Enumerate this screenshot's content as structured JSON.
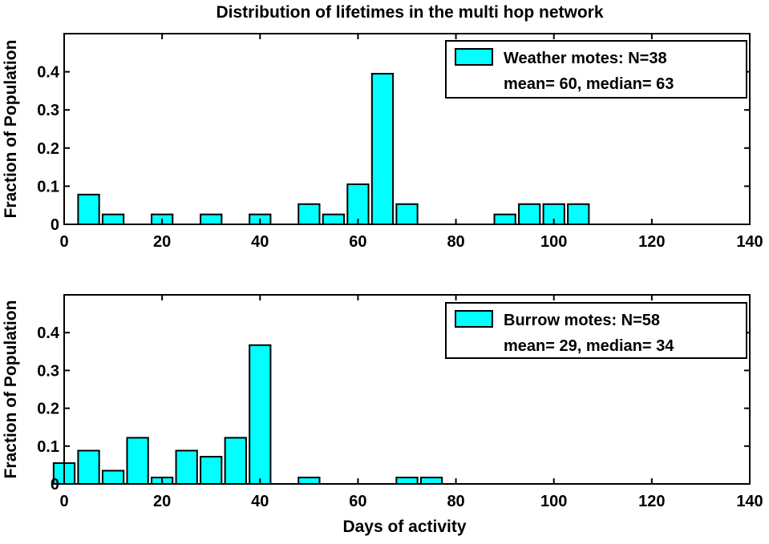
{
  "title": "Distribution of lifetimes in the multi hop network",
  "chart_data": [
    {
      "type": "bar",
      "ylabel": "Fraction of Population",
      "xlabel": "",
      "xlim": [
        0,
        140
      ],
      "ylim": [
        0,
        0.5
      ],
      "xticks": [
        0,
        20,
        40,
        60,
        80,
        100,
        120,
        140
      ],
      "yticks": [
        0,
        0.1,
        0.2,
        0.3,
        0.4
      ],
      "ytick_labels": [
        "0",
        "0.1",
        "0.2",
        "0.3",
        "0.4"
      ],
      "bin_width": 5,
      "bar_color": "#00ffff",
      "grid": false,
      "legend_position": "top-right",
      "x": [
        5,
        10,
        20,
        30,
        40,
        50,
        55,
        60,
        65,
        70,
        90,
        95,
        100,
        105
      ],
      "values": [
        0.078,
        0.026,
        0.026,
        0.026,
        0.026,
        0.053,
        0.026,
        0.105,
        0.395,
        0.053,
        0.026,
        0.053,
        0.053,
        0.053
      ],
      "legend": {
        "label": "Weather motes: N=38",
        "subtext": "mean= 60, median= 63"
      }
    },
    {
      "type": "bar",
      "ylabel": "Fraction of Population",
      "xlabel": "Days of activity",
      "xlim": [
        0,
        140
      ],
      "ylim": [
        0,
        0.5
      ],
      "xticks": [
        0,
        20,
        40,
        60,
        80,
        100,
        120,
        140
      ],
      "yticks": [
        0,
        0.1,
        0.2,
        0.3,
        0.4
      ],
      "ytick_labels": [
        "0",
        "0.1",
        "0.2",
        "0.3",
        "0.4"
      ],
      "bin_width": 5,
      "bar_color": "#00ffff",
      "grid": false,
      "legend_position": "top-right",
      "x": [
        0,
        5,
        10,
        15,
        20,
        25,
        30,
        35,
        40,
        50,
        70,
        75
      ],
      "values": [
        0.055,
        0.088,
        0.035,
        0.122,
        0.017,
        0.088,
        0.072,
        0.122,
        0.367,
        0.017,
        0.017,
        0.017
      ],
      "legend": {
        "label": "Burrow motes: N=58",
        "subtext": "mean= 29, median= 34"
      }
    }
  ]
}
